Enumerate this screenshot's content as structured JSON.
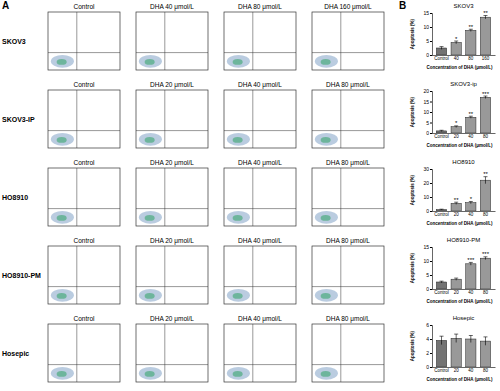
{
  "figure": {
    "panel_labels": [
      "A",
      "B"
    ],
    "rows": [
      {
        "label": "SKOV3",
        "panels": [
          "Control",
          "DHA 40 μmol/L",
          "DHA 80 μmol/L",
          "DHA 160 μmol/L"
        ]
      },
      {
        "label": "SKOV3-IP",
        "panels": [
          "Control",
          "DHA 20 μmol/L",
          "DHA 40 μmol/L",
          "DHA 80 μmol/L"
        ]
      },
      {
        "label": "HO8910",
        "panels": [
          "Control",
          "DHA 20 μmol/L",
          "DHA 40 μmol/L",
          "DHA 80 μmol/L"
        ]
      },
      {
        "label": "HO8910-PM",
        "panels": [
          "Control",
          "DHA 20 μmol/L",
          "DHA 40 μmol/L",
          "DHA 80 μmol/L"
        ]
      },
      {
        "label": "Hosepic",
        "panels": [
          "Control",
          "DHA 20 μmol/L",
          "DHA 40 μmol/L",
          "DHA 80 μmol/L"
        ]
      }
    ]
  },
  "chart_data": [
    {
      "type": "bar",
      "title": "SKOV3",
      "categories": [
        "Control",
        "40",
        "80",
        "160"
      ],
      "values": [
        2.5,
        4.5,
        8.8,
        13.5
      ],
      "errors": [
        0.5,
        0.5,
        0.4,
        0.6
      ],
      "significance": [
        null,
        "*",
        "**",
        "**"
      ],
      "color": "#999999",
      "ylim": [
        0,
        15
      ],
      "yticks": [
        0,
        5,
        10,
        15
      ],
      "y_label": "Apoptosis (%)",
      "x_label": "Concentration of DHA (μmol/L)"
    },
    {
      "type": "bar",
      "title": "SKOV3-ip",
      "categories": [
        "Control",
        "20",
        "40",
        "80"
      ],
      "values": [
        1,
        3,
        7.5,
        17
      ],
      "errors": [
        0.3,
        0.4,
        0.5,
        0.6
      ],
      "significance": [
        null,
        "*",
        "**",
        "***"
      ],
      "color": "#999999",
      "ylim": [
        0,
        20
      ],
      "yticks": [
        0,
        5,
        10,
        15,
        20
      ],
      "y_label": "Apoptosis (%)",
      "x_label": "Concentration of DHA (μmol/L)"
    },
    {
      "type": "bar",
      "title": "HO8910",
      "categories": [
        "Control",
        "20",
        "40",
        "80"
      ],
      "values": [
        1,
        5.5,
        6,
        22
      ],
      "errors": [
        0.3,
        0.8,
        0.8,
        2.5
      ],
      "significance": [
        null,
        "**",
        "*",
        "**"
      ],
      "color": "#999999",
      "ylim": [
        0,
        30
      ],
      "yticks": [
        0,
        10,
        20,
        30
      ],
      "y_label": "Apoptosis (%)",
      "x_label": "Concentration of DHA (μmol/L)"
    },
    {
      "type": "bar",
      "title": "HO8910-PM",
      "categories": [
        "Control",
        "20",
        "40",
        "80"
      ],
      "values": [
        2.5,
        3.5,
        9,
        11
      ],
      "errors": [
        0.3,
        0.4,
        0.5,
        0.5
      ],
      "significance": [
        null,
        null,
        "***",
        "***"
      ],
      "color": "#999999",
      "ylim": [
        0,
        15
      ],
      "yticks": [
        0,
        5,
        10,
        15
      ],
      "y_label": "Apoptosis (%)",
      "x_label": "Concentration of DHA (μmol/L)"
    },
    {
      "type": "bar",
      "title": "Hosepic",
      "categories": [
        "Control",
        "20",
        "40",
        "80"
      ],
      "values": [
        3.8,
        4.1,
        4,
        3.7
      ],
      "errors": [
        0.6,
        0.6,
        0.5,
        0.6
      ],
      "significance": [
        null,
        null,
        null,
        null
      ],
      "color": "#999999",
      "ylim": [
        0,
        6
      ],
      "yticks": [
        0,
        2,
        4,
        6
      ],
      "y_label": "Apoptosis (%)",
      "x_label": "Concentration of DHA (μmol/L)"
    }
  ]
}
